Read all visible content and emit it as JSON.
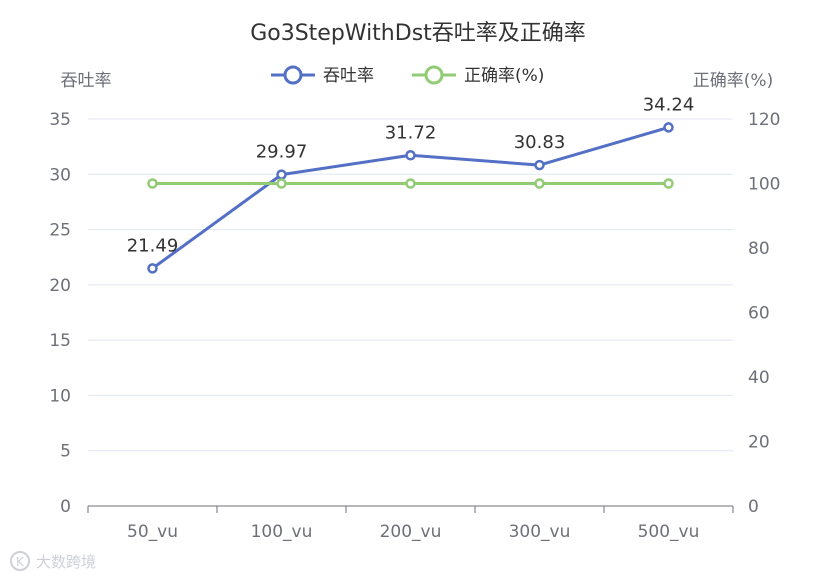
{
  "chart_data": {
    "type": "line",
    "title": "Go3StepWithDst吞吐率及正确率",
    "categories": [
      "50_vu",
      "100_vu",
      "200_vu",
      "300_vu",
      "500_vu"
    ],
    "series": [
      {
        "name": "吞吐率",
        "axis": "left",
        "color": "#5470c6",
        "values": [
          21.49,
          29.97,
          31.72,
          30.83,
          34.24
        ],
        "show_labels": true
      },
      {
        "name": "正确率(%)",
        "axis": "right",
        "color": "#91cc75",
        "values": [
          100,
          100,
          100,
          100,
          100
        ],
        "show_labels": false
      }
    ],
    "y_left": {
      "label": "吞吐率",
      "min": 0,
      "max": 35,
      "ticks": [
        0,
        5,
        10,
        15,
        20,
        25,
        30,
        35
      ]
    },
    "y_right": {
      "label": "正确率(%)",
      "min": 0,
      "max": 120,
      "ticks": [
        0,
        20,
        40,
        60,
        80,
        100,
        120
      ]
    },
    "grid": true,
    "legend_position": "top-center"
  },
  "watermark": {
    "text": "大数跨境",
    "logo_text": "K"
  }
}
